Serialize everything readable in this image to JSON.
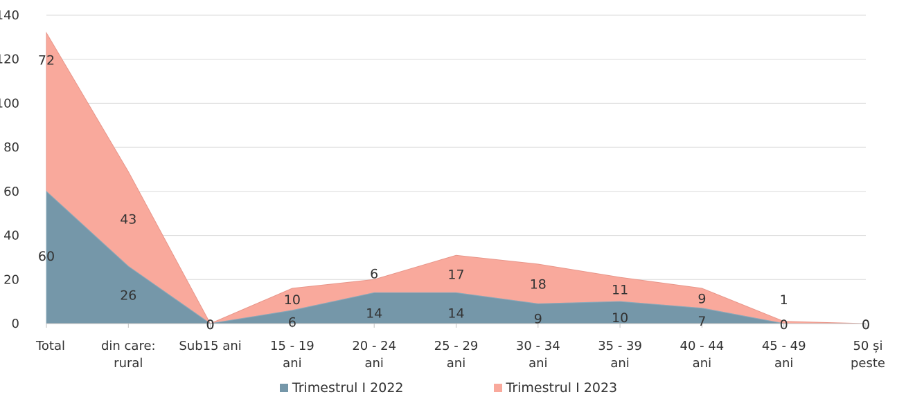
{
  "chart_data": {
    "type": "area",
    "stacked": true,
    "categories": [
      [
        "Total"
      ],
      [
        "din care:",
        "rural"
      ],
      [
        "Sub15 ani"
      ],
      [
        "15 - 19",
        "ani"
      ],
      [
        "20 - 24",
        "ani"
      ],
      [
        "25 - 29",
        "ani"
      ],
      [
        "30 - 34",
        "ani"
      ],
      [
        "35 - 39",
        "ani"
      ],
      [
        "40 - 44",
        "ani"
      ],
      [
        "45 - 49",
        "ani"
      ],
      [
        "50 și",
        "peste"
      ]
    ],
    "series": [
      {
        "name": "Trimestrul I  2022",
        "color": "#7597a9",
        "values": [
          60,
          26,
          0,
          6,
          14,
          14,
          9,
          10,
          7,
          0,
          0
        ]
      },
      {
        "name": "Trimestrul I  2023",
        "color": "#f9a99c",
        "values": [
          72,
          43,
          0,
          10,
          6,
          17,
          18,
          11,
          9,
          1,
          0
        ]
      }
    ],
    "ylim": [
      0,
      140
    ],
    "yticks": [
      0,
      20,
      40,
      60,
      80,
      100,
      120,
      140
    ],
    "grid": true,
    "legend_position": "bottom"
  }
}
